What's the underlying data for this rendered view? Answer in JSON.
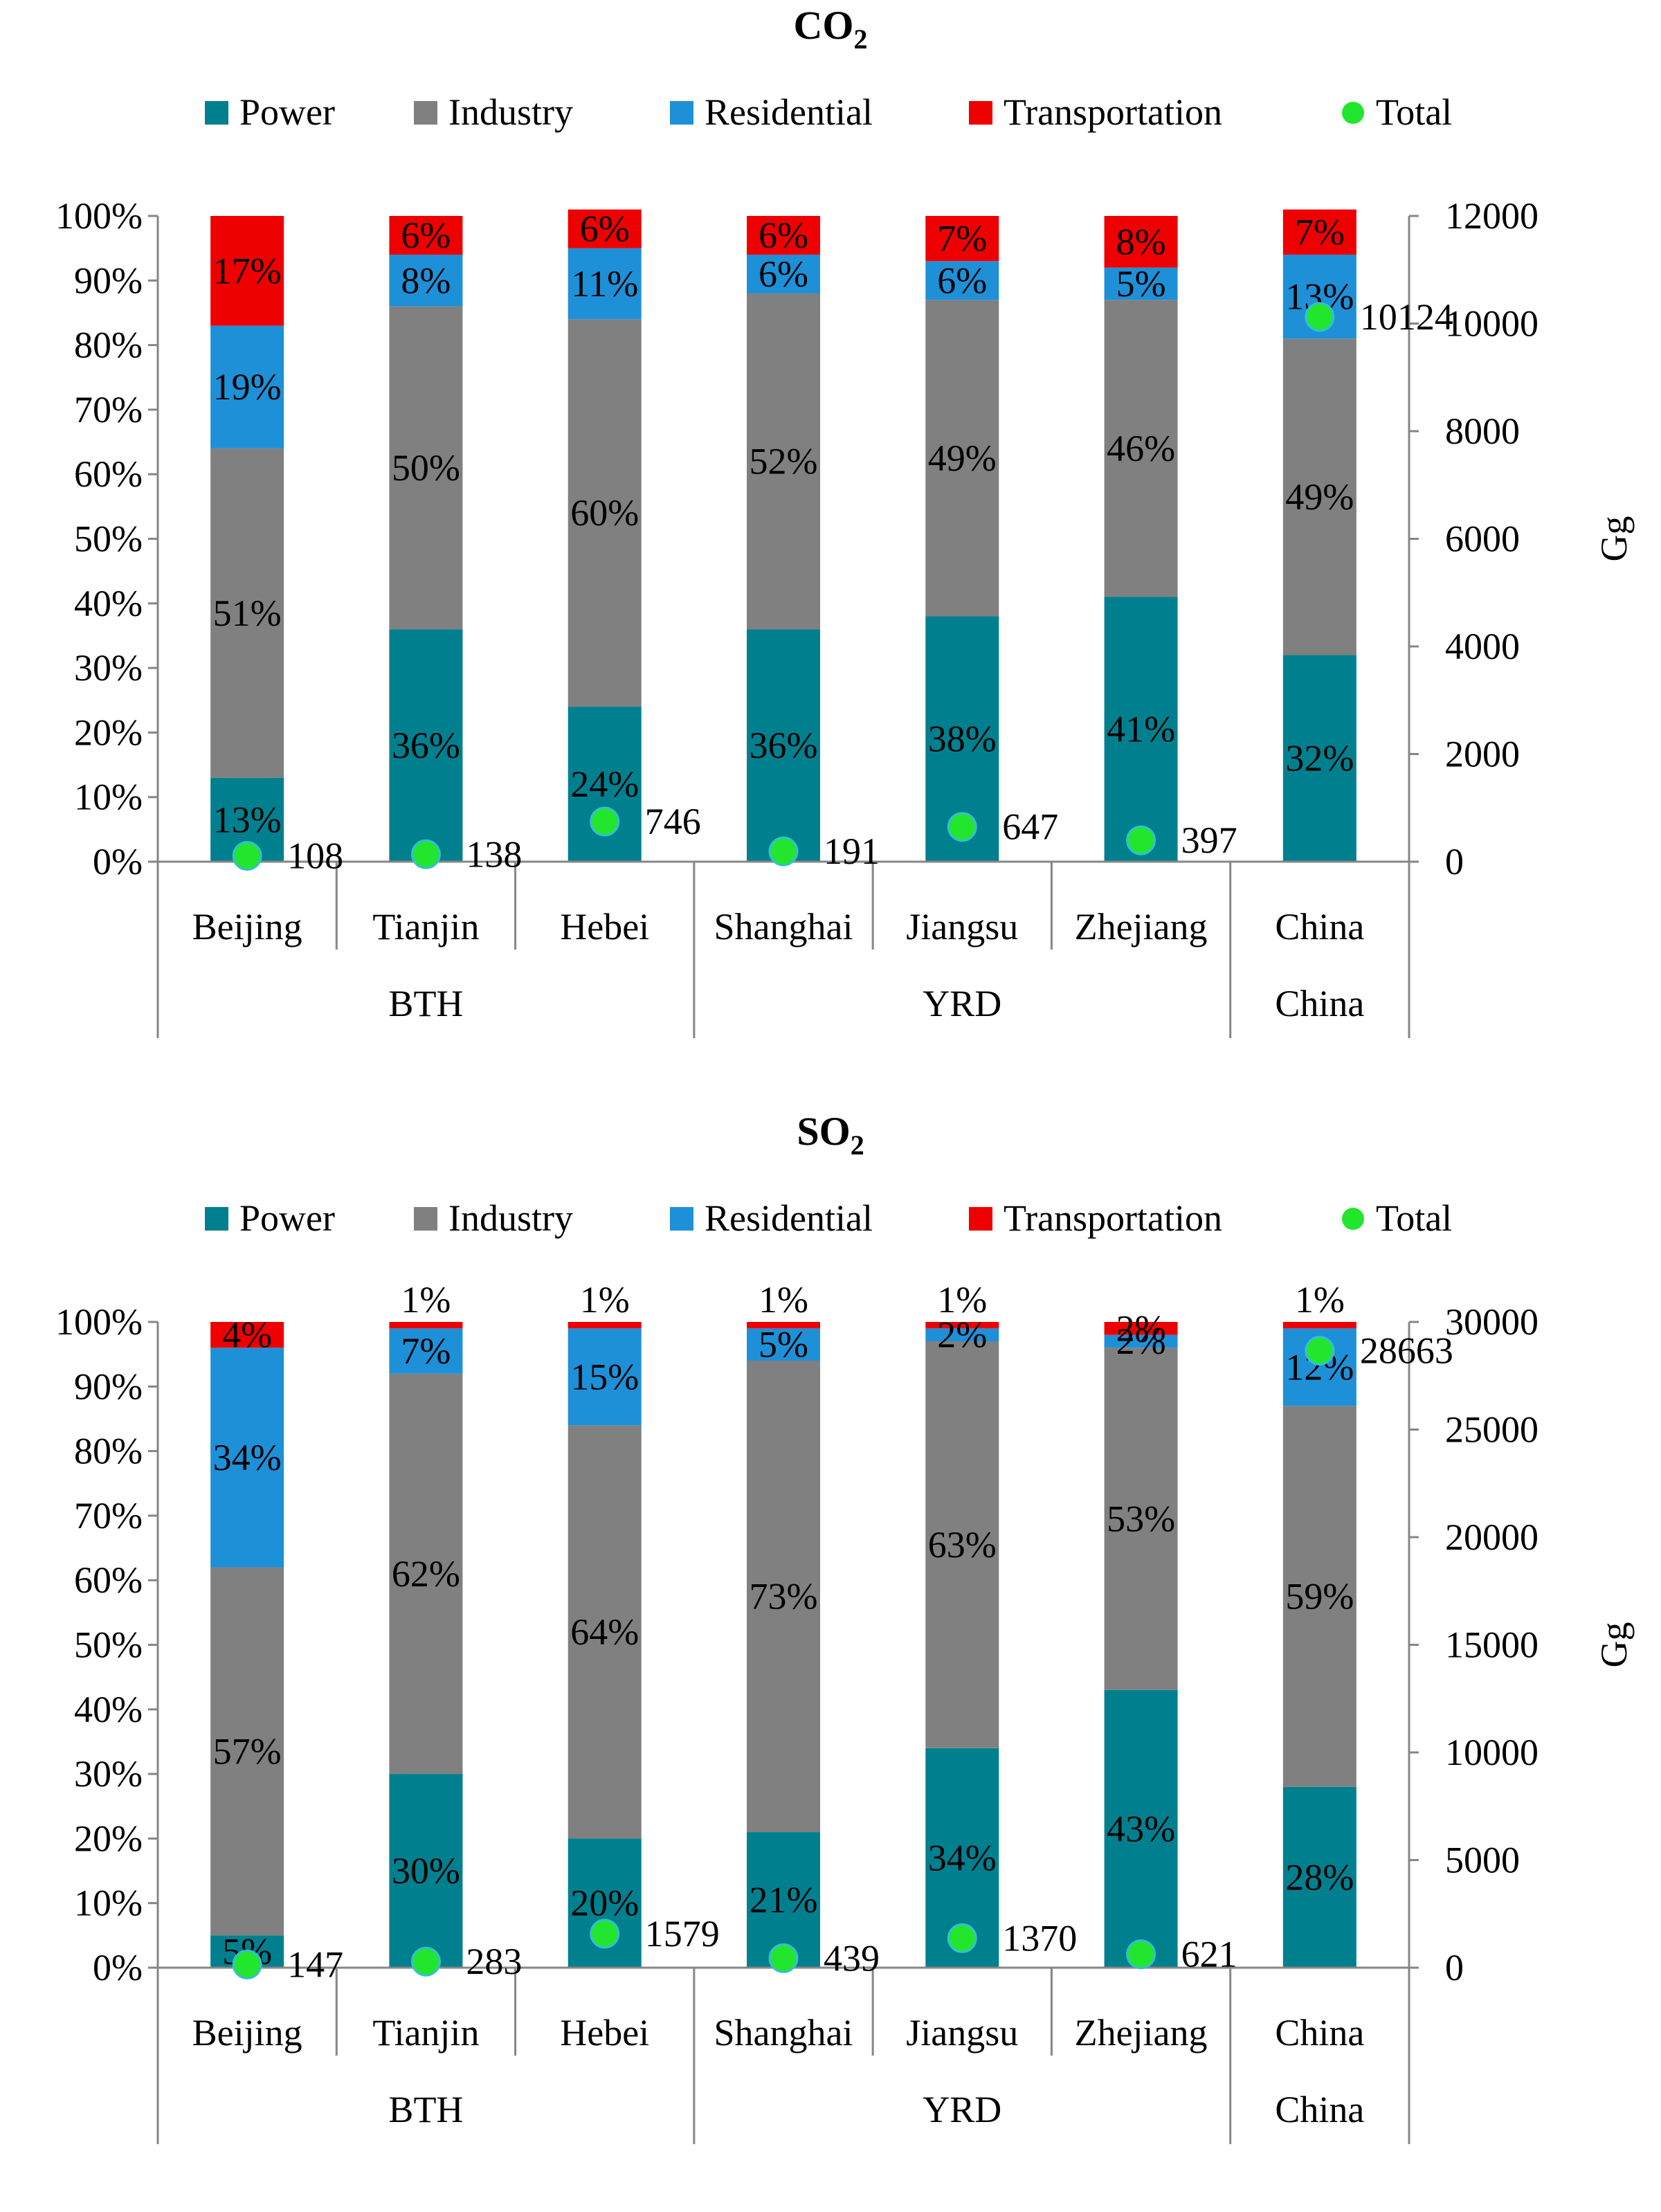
{
  "chart_data": [
    {
      "type": "bar",
      "stacked": true,
      "title": "CO2",
      "title_main": "CO",
      "title_sub": "2",
      "categories": [
        "Beijing",
        "Tianjin",
        "Hebei",
        "Shanghai",
        "Jiangsu",
        "Zhejiang",
        "China"
      ],
      "groups": [
        {
          "label": "BTH",
          "categories": [
            "Beijing",
            "Tianjin",
            "Hebei"
          ]
        },
        {
          "label": "YRD",
          "categories": [
            "Shanghai",
            "Jiangsu",
            "Zhejiang"
          ]
        },
        {
          "label": "China",
          "categories": [
            "China"
          ]
        }
      ],
      "series": [
        {
          "name": "Power",
          "color": "#00808f",
          "values": [
            13,
            36,
            24,
            36,
            38,
            41,
            32
          ]
        },
        {
          "name": "Industry",
          "color": "#808080",
          "values": [
            51,
            50,
            60,
            52,
            49,
            46,
            49
          ]
        },
        {
          "name": "Residential",
          "color": "#1e90d8",
          "values": [
            19,
            8,
            11,
            6,
            6,
            5,
            13
          ]
        },
        {
          "name": "Transportation",
          "color": "#ee0000",
          "values": [
            17,
            6,
            6,
            6,
            7,
            8,
            7
          ]
        }
      ],
      "total": {
        "name": "Total",
        "color": "#22e62e",
        "values": [
          108,
          138,
          746,
          191,
          647,
          397,
          10124
        ]
      },
      "ylim": [
        0,
        100
      ],
      "yticks": [
        "0%",
        "10%",
        "20%",
        "30%",
        "40%",
        "50%",
        "60%",
        "70%",
        "80%",
        "90%",
        "100%"
      ],
      "y2lim": [
        0,
        12000
      ],
      "y2ticks": [
        "0",
        "2000",
        "4000",
        "6000",
        "8000",
        "10000",
        "12000"
      ],
      "y2label": "Gg",
      "legend_position": "top"
    },
    {
      "type": "bar",
      "stacked": true,
      "title": "SO2",
      "title_main": "SO",
      "title_sub": "2",
      "categories": [
        "Beijing",
        "Tianjin",
        "Hebei",
        "Shanghai",
        "Jiangsu",
        "Zhejiang",
        "China"
      ],
      "groups": [
        {
          "label": "BTH",
          "categories": [
            "Beijing",
            "Tianjin",
            "Hebei"
          ]
        },
        {
          "label": "YRD",
          "categories": [
            "Shanghai",
            "Jiangsu",
            "Zhejiang"
          ]
        },
        {
          "label": "China",
          "categories": [
            "China"
          ]
        }
      ],
      "series": [
        {
          "name": "Power",
          "color": "#00808f",
          "values": [
            5,
            30,
            20,
            21,
            34,
            43,
            28
          ]
        },
        {
          "name": "Industry",
          "color": "#808080",
          "values": [
            57,
            62,
            64,
            73,
            63,
            53,
            59
          ]
        },
        {
          "name": "Residential",
          "color": "#1e90d8",
          "values": [
            34,
            7,
            15,
            5,
            2,
            2,
            12
          ]
        },
        {
          "name": "Transportation",
          "color": "#ee0000",
          "values": [
            4,
            1,
            1,
            1,
            1,
            2,
            1
          ]
        }
      ],
      "total": {
        "name": "Total",
        "color": "#22e62e",
        "values": [
          147,
          283,
          1579,
          439,
          1370,
          621,
          28663
        ]
      },
      "ylim": [
        0,
        100
      ],
      "yticks": [
        "0%",
        "10%",
        "20%",
        "30%",
        "40%",
        "50%",
        "60%",
        "70%",
        "80%",
        "90%",
        "100%"
      ],
      "y2lim": [
        0,
        30000
      ],
      "y2ticks": [
        "0",
        "5000",
        "10000",
        "15000",
        "20000",
        "25000",
        "30000"
      ],
      "y2label": "Gg",
      "legend_position": "top"
    }
  ]
}
